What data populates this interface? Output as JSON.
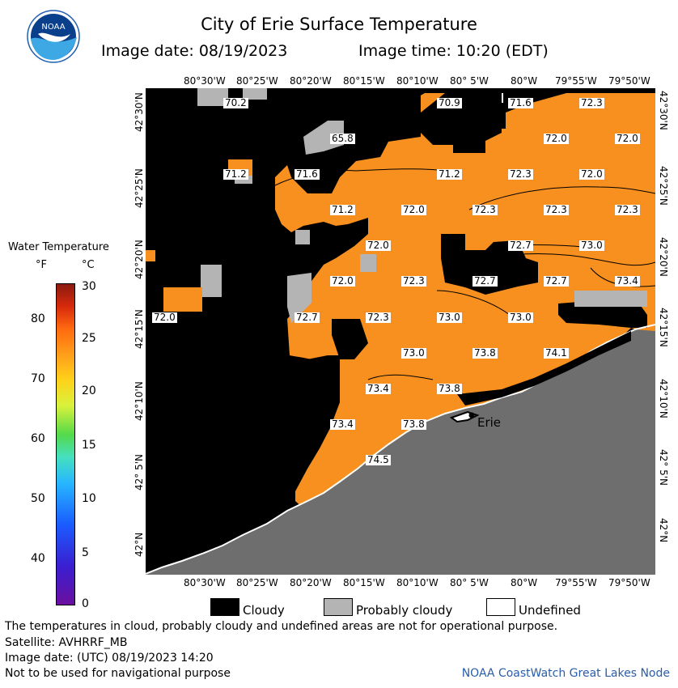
{
  "header": {
    "title": "City of Erie Surface Temperature",
    "image_date_label": "Image date: 08/19/2023",
    "image_time_label": "Image time: 10:20 (EDT)"
  },
  "axes": {
    "lon_labels": [
      "80°30'W",
      "80°25'W",
      "80°20'W",
      "80°15'W",
      "80°10'W",
      "80° 5'W",
      "80°W",
      "79°55'W",
      "79°50'W"
    ],
    "lat_labels": [
      "42°30'N",
      "42°25'N",
      "42°20'N",
      "42°15'N",
      "42°10'N",
      "42° 5'N",
      "42°N"
    ]
  },
  "legend": {
    "title": "Water Temperature",
    "unit_f": "°F",
    "unit_c": "°C",
    "f_ticks": [
      "80",
      "70",
      "60",
      "50",
      "40"
    ],
    "c_ticks": [
      "30",
      "25",
      "20",
      "15",
      "10",
      "5",
      "0"
    ],
    "cloudy": "Cloudy",
    "probably_cloudy": "Probably cloudy",
    "undefined": "Undefined"
  },
  "map": {
    "city_label": "Erie",
    "temps": [
      "70.2",
      "70.9",
      "71.6",
      "72.3",
      "65.8",
      "72.0",
      "72.0",
      "71.2",
      "71.6",
      "71.2",
      "72.3",
      "72.0",
      "71.2",
      "72.0",
      "72.3",
      "72.3",
      "72.3",
      "72.0",
      "72.7",
      "73.0",
      "72.0",
      "72.3",
      "72.7",
      "72.7",
      "73.4",
      "72.0",
      "72.7",
      "72.3",
      "73.0",
      "73.0",
      "73.0",
      "73.8",
      "74.1",
      "73.4",
      "73.8",
      "73.4",
      "73.8",
      "74.5"
    ],
    "colors": {
      "water": "#f7901e",
      "cloud": "#000000",
      "probably_cloudy": "#b4b4b4",
      "land": "#6e6e6e"
    }
  },
  "footer": {
    "note": "The temperatures in cloud, probably cloudy and undefined areas are not for operational purpose.",
    "satellite": "Satellite: AVHRRF_MB",
    "image_date_utc": "Image date: (UTC) 08/19/2023  14:20",
    "nav_warning": "Not to be used for navigational purpose",
    "source": "NOAA CoastWatch Great Lakes Node"
  }
}
